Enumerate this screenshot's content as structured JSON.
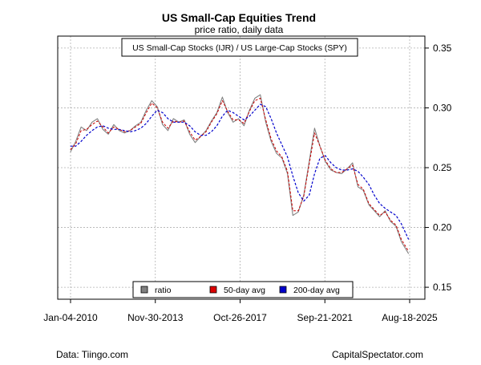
{
  "chart_data": {
    "type": "line",
    "title": "US Small-Cap Equities Trend",
    "subtitle": "price ratio, daily data",
    "series_box_label": "US Small-Cap Stocks (IJR) / US Large-Cap Stocks (SPY)",
    "x_tick_labels": [
      "Jan-04-2010",
      "Nov-30-2013",
      "Oct-26-2017",
      "Sep-21-2021",
      "Aug-18-2025"
    ],
    "y_ticks": [
      0.15,
      0.2,
      0.25,
      0.3,
      0.35
    ],
    "y_tick_labels": [
      "0.15",
      "0.20",
      "0.25",
      "0.30",
      "0.35"
    ],
    "ylim": [
      0.14,
      0.36
    ],
    "xlim": [
      "2010-01-04",
      "2025-08-18"
    ],
    "grid": true,
    "legend_position": "bottom-center",
    "x_dates": [
      "2010-01",
      "2010-04",
      "2010-07",
      "2010-10",
      "2011-01",
      "2011-04",
      "2011-07",
      "2011-10",
      "2012-01",
      "2012-04",
      "2012-07",
      "2012-10",
      "2013-01",
      "2013-04",
      "2013-07",
      "2013-10",
      "2014-01",
      "2014-04",
      "2014-07",
      "2014-10",
      "2015-01",
      "2015-04",
      "2015-07",
      "2015-10",
      "2016-01",
      "2016-04",
      "2016-07",
      "2016-10",
      "2017-01",
      "2017-04",
      "2017-07",
      "2017-10",
      "2018-01",
      "2018-04",
      "2018-07",
      "2018-10",
      "2019-01",
      "2019-04",
      "2019-07",
      "2019-10",
      "2020-01",
      "2020-04",
      "2020-07",
      "2020-10",
      "2021-01",
      "2021-04",
      "2021-07",
      "2021-10",
      "2022-01",
      "2022-04",
      "2022-07",
      "2022-10",
      "2023-01",
      "2023-04",
      "2023-07",
      "2023-10",
      "2024-01",
      "2024-04",
      "2024-07",
      "2024-10",
      "2025-01",
      "2025-04",
      "2025-08"
    ],
    "series": [
      {
        "name": "ratio",
        "color": "#808080",
        "values": [
          0.263,
          0.272,
          0.284,
          0.281,
          0.288,
          0.291,
          0.282,
          0.278,
          0.286,
          0.281,
          0.279,
          0.281,
          0.285,
          0.288,
          0.298,
          0.306,
          0.301,
          0.286,
          0.281,
          0.291,
          0.288,
          0.29,
          0.278,
          0.271,
          0.276,
          0.281,
          0.289,
          0.296,
          0.309,
          0.296,
          0.288,
          0.291,
          0.285,
          0.298,
          0.308,
          0.311,
          0.288,
          0.272,
          0.262,
          0.258,
          0.245,
          0.21,
          0.213,
          0.227,
          0.255,
          0.283,
          0.268,
          0.255,
          0.248,
          0.246,
          0.245,
          0.249,
          0.254,
          0.234,
          0.231,
          0.219,
          0.214,
          0.209,
          0.214,
          0.205,
          0.201,
          0.188,
          0.178
        ]
      },
      {
        "name": "50-day avg",
        "color": "#cc0000",
        "values": [
          0.265,
          0.27,
          0.281,
          0.282,
          0.286,
          0.289,
          0.284,
          0.279,
          0.284,
          0.282,
          0.28,
          0.281,
          0.284,
          0.287,
          0.296,
          0.304,
          0.3,
          0.288,
          0.283,
          0.289,
          0.288,
          0.289,
          0.28,
          0.273,
          0.276,
          0.28,
          0.288,
          0.295,
          0.306,
          0.297,
          0.29,
          0.29,
          0.287,
          0.297,
          0.306,
          0.308,
          0.29,
          0.274,
          0.264,
          0.259,
          0.247,
          0.214,
          0.214,
          0.226,
          0.253,
          0.279,
          0.268,
          0.256,
          0.249,
          0.246,
          0.246,
          0.249,
          0.252,
          0.236,
          0.232,
          0.22,
          0.215,
          0.21,
          0.213,
          0.206,
          0.202,
          0.19,
          0.18
        ]
      },
      {
        "name": "200-day avg",
        "color": "#0000cc",
        "values": [
          0.268,
          0.268,
          0.272,
          0.277,
          0.281,
          0.284,
          0.285,
          0.283,
          0.282,
          0.282,
          0.281,
          0.28,
          0.281,
          0.283,
          0.287,
          0.293,
          0.298,
          0.296,
          0.291,
          0.288,
          0.288,
          0.288,
          0.285,
          0.28,
          0.277,
          0.277,
          0.28,
          0.285,
          0.293,
          0.298,
          0.296,
          0.293,
          0.29,
          0.293,
          0.298,
          0.303,
          0.301,
          0.291,
          0.279,
          0.269,
          0.259,
          0.243,
          0.229,
          0.222,
          0.227,
          0.245,
          0.258,
          0.26,
          0.254,
          0.25,
          0.248,
          0.248,
          0.249,
          0.247,
          0.242,
          0.236,
          0.227,
          0.22,
          0.216,
          0.213,
          0.21,
          0.203,
          0.19
        ]
      }
    ]
  },
  "footer": {
    "left": "Data: Tiingo.com",
    "right": "CapitalSpectator.com"
  }
}
